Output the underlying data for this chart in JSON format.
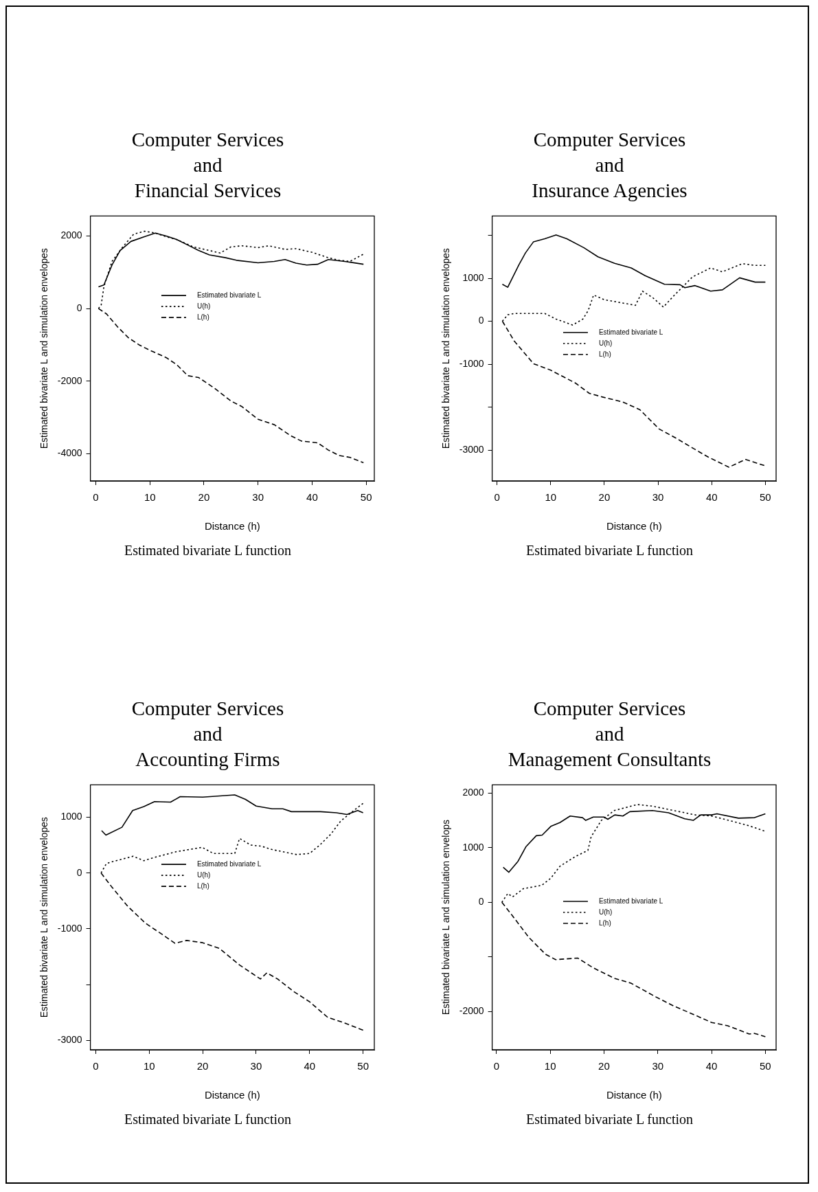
{
  "chart_data": [
    {
      "type": "line",
      "title": "Computer Services\nand\nFinancial Services",
      "xlabel": "Distance (h)",
      "ylabel": "Estimated bivariate L and simulation envelopes",
      "annotations": [
        "Estimated bivariate L function"
      ],
      "xlim": [
        -1,
        51.5
      ],
      "ylim": [
        -4750,
        2550
      ],
      "xticks": [
        0,
        10,
        20,
        30,
        40,
        50
      ],
      "yticks": [
        -4000,
        -2000,
        0,
        2000
      ],
      "legend": "top",
      "marker": "none",
      "series": [
        {
          "name": "Estimated bivariate L",
          "color": "#000000",
          "line_style": "solid",
          "x": [
            0.5,
            1.5,
            3,
            4.5,
            6.5,
            9,
            11,
            13,
            15,
            17,
            19,
            21,
            24,
            26,
            30,
            33,
            35,
            37,
            39,
            41,
            43,
            46,
            49.5
          ],
          "values": [
            600,
            650,
            1200,
            1600,
            1850,
            1980,
            2080,
            2000,
            1900,
            1750,
            1600,
            1480,
            1400,
            1330,
            1260,
            1300,
            1350,
            1250,
            1200,
            1220,
            1350,
            1300,
            1220
          ]
        },
        {
          "name": "U(h)",
          "color": "#000000",
          "line_style": "dotted",
          "x": [
            0.5,
            1,
            1.5,
            3,
            5,
            7,
            9,
            11,
            13,
            15,
            18,
            21,
            23,
            25,
            27,
            30,
            32,
            35,
            37,
            40,
            43,
            45,
            47,
            49.5
          ],
          "values": [
            0,
            100,
            600,
            1300,
            1700,
            2050,
            2130,
            2080,
            1980,
            1900,
            1700,
            1600,
            1530,
            1700,
            1730,
            1680,
            1730,
            1630,
            1650,
            1550,
            1400,
            1330,
            1300,
            1500
          ]
        },
        {
          "name": "L(h)",
          "color": "#000000",
          "line_style": "dashed",
          "x": [
            0.5,
            2,
            4,
            6,
            8,
            10,
            13,
            15,
            17,
            19,
            22,
            25,
            27,
            30,
            33,
            36,
            38,
            41,
            43,
            45,
            47,
            49.5
          ],
          "values": [
            0,
            -150,
            -500,
            -800,
            -1000,
            -1150,
            -1350,
            -1550,
            -1850,
            -1900,
            -2200,
            -2550,
            -2700,
            -3050,
            -3200,
            -3500,
            -3650,
            -3700,
            -3900,
            -4050,
            -4100,
            -4250
          ]
        }
      ]
    },
    {
      "type": "line",
      "title": "Computer Services\nand\nInsurance Agencies",
      "xlabel": "Distance (h)",
      "ylabel": "Estimated bivariate L and simulation envelopes",
      "annotations": [
        "Estimated bivariate L function"
      ],
      "xlim": [
        -0.9,
        52
      ],
      "ylim": [
        -3720,
        2450
      ],
      "xticks": [
        0,
        10,
        20,
        30,
        40,
        50
      ],
      "yticks": [
        -3000,
        {
          "value": -2000,
          "label": null
        },
        -1000,
        0,
        1000,
        {
          "value": 2000,
          "label": null
        }
      ],
      "legend": "center",
      "marker": "none",
      "series": [
        {
          "name": "Estimated bivariate L",
          "color": "#000000",
          "line_style": "solid",
          "x": [
            1,
            2,
            4.1,
            5.3,
            6.8,
            8.9,
            11,
            13,
            16.2,
            18.8,
            21.9,
            25,
            27.6,
            31.2,
            34.1,
            35,
            36.9,
            39.8,
            42,
            45.2,
            48.1,
            50
          ],
          "values": [
            860,
            790,
            1320,
            1590,
            1850,
            1920,
            2010,
            1920,
            1710,
            1500,
            1350,
            1240,
            1060,
            860,
            850,
            780,
            830,
            700,
            730,
            1010,
            910,
            910
          ]
        },
        {
          "name": "U(h)",
          "color": "#000000",
          "line_style": "dotted",
          "x": [
            1,
            2,
            3.2,
            8.9,
            11,
            14.1,
            16,
            17,
            18,
            20,
            25.8,
            27.1,
            29,
            31,
            33,
            35,
            36.4,
            39.8,
            42,
            45.7,
            48,
            50
          ],
          "values": [
            0,
            150,
            180,
            180,
            50,
            -90,
            50,
            250,
            610,
            500,
            370,
            700,
            550,
            330,
            600,
            850,
            1030,
            1240,
            1150,
            1340,
            1300,
            1300
          ]
        },
        {
          "name": "L(h)",
          "color": "#000000",
          "line_style": "dashed",
          "x": [
            1,
            3.2,
            6.8,
            10,
            14.6,
            17.2,
            19.8,
            23.4,
            26.6,
            30.2,
            33.3,
            36.4,
            39.3,
            43.2,
            46.3,
            50
          ],
          "values": [
            0,
            -460,
            -990,
            -1140,
            -1440,
            -1680,
            -1770,
            -1880,
            -2060,
            -2510,
            -2720,
            -2950,
            -3160,
            -3400,
            -3220,
            -3370
          ]
        }
      ]
    },
    {
      "type": "line",
      "title": "Computer Services\nand\nAccounting Firms",
      "xlabel": "Distance (h)",
      "ylabel": "Estimated bivariate L and simulation envelopes",
      "annotations": [
        "Estimated bivariate L function"
      ],
      "xlim": [
        -1,
        52.1
      ],
      "ylim": [
        -3170,
        1580
      ],
      "xticks": [
        0,
        10,
        20,
        30,
        40,
        50
      ],
      "yticks": [
        -3000,
        {
          "value": -2000,
          "label": null
        },
        -1000,
        0,
        1000
      ],
      "legend": "top",
      "marker": "none",
      "series": [
        {
          "name": "Estimated bivariate L",
          "color": "#000000",
          "line_style": "solid",
          "x": [
            1.1,
            1.9,
            4.9,
            6.9,
            9,
            11,
            14,
            15.8,
            20,
            26,
            28,
            30,
            33,
            35,
            36.6,
            42,
            45,
            47,
            49,
            50
          ],
          "values": [
            760,
            680,
            820,
            1120,
            1190,
            1280,
            1270,
            1370,
            1360,
            1400,
            1320,
            1200,
            1150,
            1150,
            1100,
            1100,
            1080,
            1050,
            1120,
            1080
          ]
        },
        {
          "name": "U(h)",
          "color": "#000000",
          "line_style": "dotted",
          "x": [
            1,
            2,
            3,
            7,
            9,
            11,
            15,
            19.9,
            22,
            26,
            26.9,
            29,
            31,
            33,
            37.6,
            40,
            41.9,
            44,
            45.8,
            48,
            50
          ],
          "values": [
            0,
            170,
            200,
            300,
            220,
            280,
            380,
            460,
            350,
            350,
            620,
            500,
            480,
            420,
            330,
            350,
            500,
            700,
            930,
            1100,
            1250
          ]
        },
        {
          "name": "L(h)",
          "color": "#000000",
          "line_style": "dashed",
          "x": [
            1,
            3,
            6,
            9.3,
            12.4,
            14.8,
            17,
            20,
            23.1,
            26.9,
            30.8,
            32,
            34,
            37.1,
            40,
            43.4,
            46,
            50
          ],
          "values": [
            0,
            -250,
            -600,
            -900,
            -1100,
            -1260,
            -1210,
            -1250,
            -1350,
            -1650,
            -1900,
            -1790,
            -1900,
            -2130,
            -2310,
            -2590,
            -2670,
            -2820
          ]
        }
      ]
    },
    {
      "type": "line",
      "title": "Computer Services\nand\nManagement Consultants",
      "xlabel": "Distance (h)",
      "ylabel": "Estimated bivariate L and simulation envelops",
      "annotations": [
        "Estimated bivariate L function"
      ],
      "xlim": [
        -0.8,
        52
      ],
      "ylim": [
        -2700,
        2150
      ],
      "xticks": [
        0,
        10,
        20,
        30,
        40,
        50
      ],
      "yticks": [
        -2000,
        {
          "value": -1000,
          "label": null
        },
        0,
        1000,
        2000
      ],
      "legend": "center",
      "marker": "none",
      "series": [
        {
          "name": "Estimated bivariate L",
          "color": "#000000",
          "line_style": "solid",
          "x": [
            1.25,
            2.3,
            4,
            5.5,
            7.4,
            8.5,
            10.1,
            11.8,
            13.7,
            16,
            16.6,
            18,
            20,
            20.7,
            22,
            23.5,
            24.8,
            29,
            32,
            35,
            36.6,
            38,
            40,
            41,
            45,
            48,
            50
          ],
          "values": [
            640,
            550,
            750,
            1020,
            1220,
            1230,
            1390,
            1460,
            1580,
            1550,
            1500,
            1560,
            1560,
            1520,
            1600,
            1580,
            1660,
            1680,
            1640,
            1530,
            1500,
            1600,
            1600,
            1620,
            1540,
            1550,
            1620
          ]
        },
        {
          "name": "U(h)",
          "color": "#000000",
          "line_style": "dotted",
          "x": [
            1,
            2.1,
            3,
            5,
            8.4,
            10.1,
            11.8,
            14.7,
            17,
            17.6,
            19.5,
            21.9,
            26.2,
            29,
            33,
            37,
            40,
            44,
            47,
            50
          ],
          "values": [
            0,
            160,
            100,
            250,
            310,
            440,
            660,
            840,
            950,
            1200,
            1500,
            1680,
            1790,
            1760,
            1680,
            1600,
            1580,
            1480,
            1400,
            1300
          ]
        },
        {
          "name": "L(h)",
          "color": "#000000",
          "line_style": "dashed",
          "x": [
            1,
            3,
            6,
            9.1,
            11,
            15.1,
            18,
            21.9,
            25,
            29.6,
            33,
            36.8,
            40,
            43,
            47,
            48,
            50
          ],
          "values": [
            0,
            -250,
            -640,
            -950,
            -1050,
            -1020,
            -1200,
            -1390,
            -1480,
            -1730,
            -1900,
            -2060,
            -2200,
            -2260,
            -2410,
            -2400,
            -2460
          ]
        }
      ]
    }
  ]
}
